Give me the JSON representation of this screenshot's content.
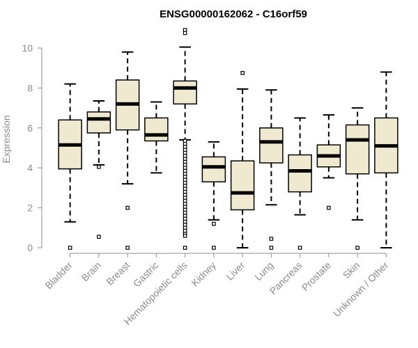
{
  "chart_data": {
    "type": "boxplot",
    "title": "ENSG00000162062 - C16orf59",
    "ylabel": "Expression",
    "xlabel": "",
    "ylim": [
      0,
      10
    ],
    "yticks": [
      0,
      2,
      4,
      6,
      8,
      10
    ],
    "categories": [
      "Bladder",
      "Brain",
      "Breast",
      "Gastric",
      "Hematopoietic cells",
      "Kidney",
      "Liver",
      "Lung",
      "Pancreas",
      "Prostate",
      "Skin",
      "Unknown / Other"
    ],
    "boxes": [
      {
        "min": 1.3,
        "q1": 3.95,
        "median": 5.15,
        "q3": 6.4,
        "max": 8.2,
        "outliers": [
          0.0
        ]
      },
      {
        "min": 4.15,
        "q1": 5.75,
        "median": 6.45,
        "q3": 6.8,
        "max": 7.35,
        "outliers": [
          4.05,
          0.55
        ]
      },
      {
        "min": 3.2,
        "q1": 5.9,
        "median": 7.2,
        "q3": 8.4,
        "max": 9.8,
        "outliers": [
          2.0,
          0.0
        ]
      },
      {
        "min": 3.75,
        "q1": 5.35,
        "median": 5.65,
        "q3": 6.5,
        "max": 7.3,
        "outliers": []
      },
      {
        "min": 5.4,
        "q1": 7.2,
        "median": 8.0,
        "q3": 8.35,
        "max": 10.05,
        "outliers": [
          10.9,
          10.75,
          5.35,
          5.2,
          5.05,
          4.9,
          4.75,
          4.6,
          4.45,
          4.3,
          4.15,
          4.0,
          3.85,
          3.7,
          3.55,
          3.4,
          3.25,
          3.1,
          2.95,
          2.8,
          2.65,
          2.5,
          2.35,
          2.2,
          2.05,
          1.9,
          1.75,
          1.6,
          1.45,
          1.3,
          1.15,
          1.0,
          0.85,
          0.7,
          0.6,
          0.0
        ]
      },
      {
        "min": 1.4,
        "q1": 3.3,
        "median": 4.05,
        "q3": 4.55,
        "max": 5.3,
        "outliers": [
          1.2,
          0.0
        ]
      },
      {
        "min": 0.0,
        "q1": 1.9,
        "median": 2.75,
        "q3": 4.35,
        "max": 7.95,
        "outliers": [
          8.75
        ]
      },
      {
        "min": 2.15,
        "q1": 4.25,
        "median": 5.3,
        "q3": 6.0,
        "max": 7.9,
        "outliers": [
          0.45,
          0.0
        ]
      },
      {
        "min": 1.65,
        "q1": 2.8,
        "median": 3.85,
        "q3": 4.65,
        "max": 6.5,
        "outliers": [
          0.0
        ]
      },
      {
        "min": 3.5,
        "q1": 4.05,
        "median": 4.6,
        "q3": 5.15,
        "max": 6.65,
        "outliers": [
          2.0
        ]
      },
      {
        "min": 1.4,
        "q1": 3.7,
        "median": 5.4,
        "q3": 6.15,
        "max": 7.0,
        "outliers": [
          0.0
        ]
      },
      {
        "min": 0.0,
        "q1": 3.75,
        "median": 5.1,
        "q3": 6.5,
        "max": 8.8,
        "outliers": []
      }
    ],
    "box_fill": "#efe9d0",
    "line_color": "#000000",
    "axis_color": "#8c8c8c",
    "grid": false,
    "legend": "none"
  }
}
